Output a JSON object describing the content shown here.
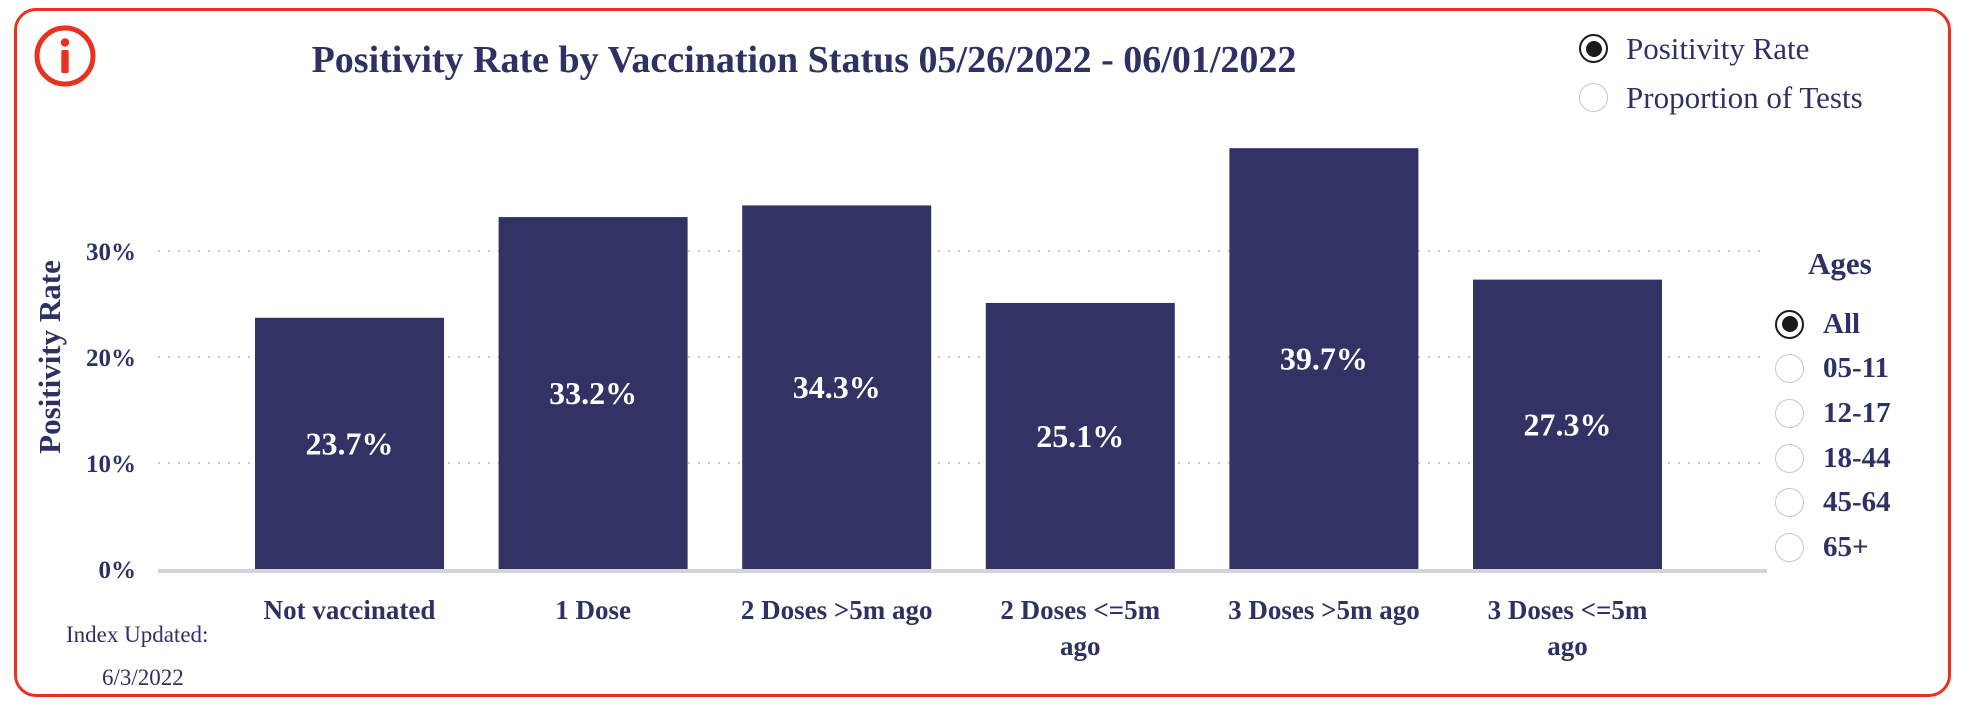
{
  "title": "Positivity Rate by Vaccination Status 05/26/2022 - 06/01/2022",
  "metric_options": [
    {
      "label": "Positivity Rate",
      "selected": true
    },
    {
      "label": "Proportion of Tests",
      "selected": false
    }
  ],
  "ages": {
    "title": "Ages",
    "options": [
      {
        "label": "All",
        "selected": true
      },
      {
        "label": "05-11",
        "selected": false
      },
      {
        "label": "12-17",
        "selected": false
      },
      {
        "label": "18-44",
        "selected": false
      },
      {
        "label": "45-64",
        "selected": false
      },
      {
        "label": "65+",
        "selected": false
      }
    ]
  },
  "footer": {
    "updated_label": "Index Updated:",
    "updated_date": "6/3/2022"
  },
  "colors": {
    "bar": "#323264",
    "frame": "#e8321f",
    "text": "#2f3163"
  },
  "icons": {
    "info": "info-icon"
  },
  "chart_data": {
    "type": "bar",
    "title": "Positivity Rate by Vaccination Status 05/26/2022 - 06/01/2022",
    "xlabel": "",
    "ylabel": "Positivity Rate",
    "categories": [
      [
        "Not vaccinated"
      ],
      [
        "1 Dose"
      ],
      [
        "2 Doses >5m ago"
      ],
      [
        "2 Doses <=5m",
        "ago"
      ],
      [
        "3 Doses >5m ago"
      ],
      [
        "3 Doses <=5m",
        "ago"
      ]
    ],
    "values": [
      23.7,
      33.2,
      34.3,
      25.1,
      39.7,
      27.3
    ],
    "data_labels": [
      "23.7%",
      "33.2%",
      "34.3%",
      "25.1%",
      "39.7%",
      "27.3%"
    ],
    "yticks": [
      0,
      10,
      20,
      30
    ],
    "ytick_labels": [
      "0%",
      "10%",
      "20%",
      "30%"
    ],
    "ylim": [
      0,
      40
    ],
    "grid": true
  }
}
